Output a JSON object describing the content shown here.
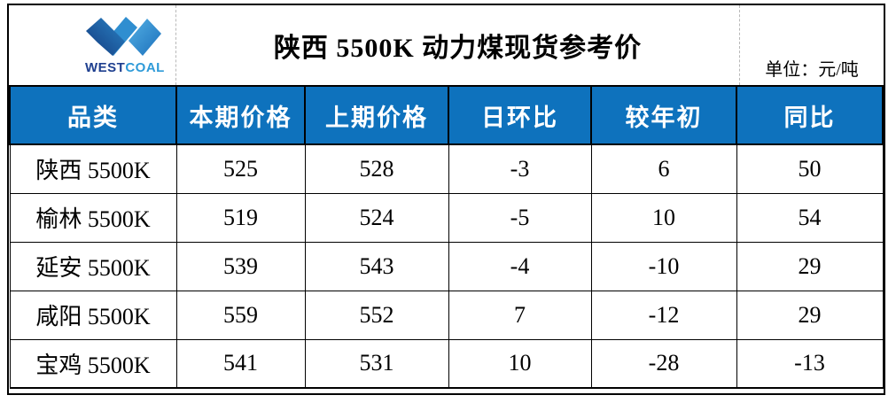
{
  "logo": {
    "west": "WEST",
    "coal": "COAL"
  },
  "header": {
    "title": "陕西 5500K 动力煤现货参考价",
    "unit": "单位：元/吨"
  },
  "colors": {
    "header_bg": "#0e72bd",
    "logo_west": "#1e3f8f",
    "logo_coal": "#2e9ad8",
    "border": "#000000"
  },
  "chart_data": {
    "type": "table",
    "title": "陕西 5500K 动力煤现货参考价",
    "unit": "元/吨",
    "columns": [
      "品类",
      "本期价格",
      "上期价格",
      "日环比",
      "较年初",
      "同比"
    ],
    "rows": [
      [
        "陕西 5500K",
        525,
        528,
        -3,
        6,
        50
      ],
      [
        "榆林 5500K",
        519,
        524,
        -5,
        10,
        54
      ],
      [
        "延安 5500K",
        539,
        543,
        -4,
        -10,
        29
      ],
      [
        "咸阳 5500K",
        559,
        552,
        7,
        -12,
        29
      ],
      [
        "宝鸡 5500K",
        541,
        531,
        10,
        -28,
        -13
      ]
    ]
  }
}
